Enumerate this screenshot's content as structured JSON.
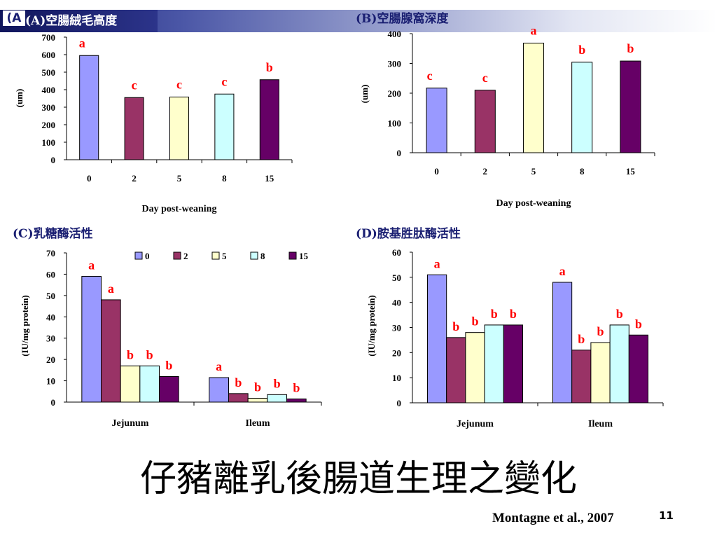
{
  "slide": {
    "tag": "(A",
    "main_title": "仔豬離乳後腸道生理之變化",
    "citation": "Montagne et al., 2007",
    "page_number": "11"
  },
  "colors": {
    "series": [
      "#9999ff",
      "#993366",
      "#ffffcc",
      "#ccffff",
      "#660066"
    ],
    "significance": "#ff0000",
    "panel_title": "#1a1f72"
  },
  "chart_data": [
    {
      "id": "A",
      "type": "bar",
      "title": "(A)空腸絨毛高度",
      "categories": [
        "0",
        "2",
        "5",
        "8",
        "15"
      ],
      "values": [
        595,
        355,
        358,
        375,
        457
      ],
      "significance": [
        "a",
        "c",
        "c",
        "c",
        "b"
      ],
      "xlabel": "Day post-weaning",
      "ylabel": "(um)",
      "ylim": [
        0,
        700
      ],
      "yticks": [
        0,
        100,
        200,
        300,
        400,
        500,
        600,
        700
      ],
      "grid": false,
      "legend": "none"
    },
    {
      "id": "B",
      "type": "bar",
      "title": "(B)空腸腺窩深度",
      "categories": [
        "0",
        "2",
        "5",
        "8",
        "15"
      ],
      "values": [
        217,
        210,
        368,
        304,
        308
      ],
      "significance": [
        "c",
        "c",
        "a",
        "b",
        "b"
      ],
      "xlabel": "Day post-weaning",
      "ylabel": "(um)",
      "ylim": [
        0,
        400
      ],
      "yticks": [
        0,
        100,
        200,
        300,
        400
      ],
      "grid": false,
      "legend": "none"
    },
    {
      "id": "C",
      "type": "bar",
      "title": "(C)乳糖酶活性",
      "categories": [
        "Jejunum",
        "Ileum"
      ],
      "series": [
        {
          "name": "0",
          "values": [
            59,
            11.5
          ],
          "significance": [
            "a",
            "a"
          ]
        },
        {
          "name": "2",
          "values": [
            48,
            4
          ],
          "significance": [
            "a",
            "b"
          ]
        },
        {
          "name": "5",
          "values": [
            17,
            1.8
          ],
          "significance": [
            "b",
            "b"
          ]
        },
        {
          "name": "8",
          "values": [
            17,
            3.5
          ],
          "significance": [
            "b",
            "b"
          ]
        },
        {
          "name": "15",
          "values": [
            12,
            1.5
          ],
          "significance": [
            "b",
            "b"
          ]
        }
      ],
      "xlabel": "",
      "ylabel": "(IU/mg protein)",
      "ylim": [
        0,
        70
      ],
      "yticks": [
        0,
        10,
        20,
        30,
        40,
        50,
        60,
        70
      ],
      "grid": false,
      "legend": "top"
    },
    {
      "id": "D",
      "type": "bar",
      "title": "(D)胺基胜肽酶活性",
      "categories": [
        "Jejunum",
        "Ileum"
      ],
      "series": [
        {
          "name": "0",
          "values": [
            51,
            48
          ],
          "significance": [
            "a",
            "a"
          ]
        },
        {
          "name": "2",
          "values": [
            26,
            21
          ],
          "significance": [
            "b",
            "b"
          ]
        },
        {
          "name": "5",
          "values": [
            28,
            24
          ],
          "significance": [
            "b",
            "b"
          ]
        },
        {
          "name": "8",
          "values": [
            31,
            31
          ],
          "significance": [
            "b",
            "b"
          ]
        },
        {
          "name": "15",
          "values": [
            31,
            27
          ],
          "significance": [
            "b",
            "b"
          ]
        }
      ],
      "xlabel": "",
      "ylabel": "(IU/mg protein)",
      "ylim": [
        0,
        60
      ],
      "yticks": [
        0,
        10,
        20,
        30,
        40,
        50,
        60
      ],
      "grid": false,
      "legend": "none"
    }
  ]
}
